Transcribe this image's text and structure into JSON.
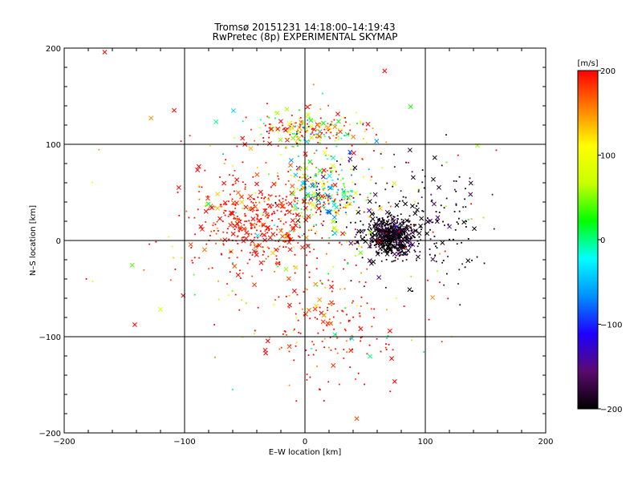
{
  "title": "Tromsø 20151231 14:18:00–14:19:43",
  "subtitle": "RwPretec (8p) EXPERIMENTAL SKYMAP",
  "chart_data": {
    "type": "scatter",
    "title": "Tromsø 20151231 14:18:00–14:19:43",
    "subtitle": "RwPretec (8p) EXPERIMENTAL SKYMAP",
    "xlabel": "E–W location [km]",
    "ylabel": "N–S location [km]",
    "xlim": [
      -200,
      200
    ],
    "ylim": [
      -200,
      200
    ],
    "xticks": [
      -200,
      -100,
      0,
      100,
      200
    ],
    "yticks": [
      -200,
      -100,
      0,
      100,
      200
    ],
    "xtick_labels": [
      "−200",
      "−100",
      "0",
      "100",
      "200"
    ],
    "ytick_labels": [
      "−200",
      "−100",
      "0",
      "100",
      "200"
    ],
    "grid": true,
    "markers": [
      "dot",
      "x"
    ],
    "color_by": "velocity",
    "colorbar": {
      "label": "[m/s]",
      "min": -200,
      "max": 200,
      "ticks": [
        200,
        100,
        0,
        -100,
        -200
      ],
      "tick_labels": [
        "200",
        "100",
        "0",
        "−100",
        "−200"
      ],
      "colormap": [
        "#000000",
        "#5a0a6e",
        "#1e00ff",
        "#0090ff",
        "#00ffff",
        "#00ff00",
        "#c8ff00",
        "#ffff00",
        "#ff8000",
        "#ff0000"
      ]
    },
    "clusters": [
      {
        "region": "east-center",
        "x": 72,
        "y": 5,
        "spread_x": 18,
        "spread_y": 18,
        "velocity": -200,
        "approx_points": 550
      },
      {
        "region": "east-spread",
        "x": 95,
        "y": 20,
        "spread_x": 45,
        "spread_y": 55,
        "velocity": -190,
        "approx_points": 180
      },
      {
        "region": "west-center",
        "x": -40,
        "y": 20,
        "spread_x": 45,
        "spread_y": 40,
        "velocity": 200,
        "approx_points": 380
      },
      {
        "region": "central",
        "x": 15,
        "y": 50,
        "spread_x": 25,
        "spread_y": 35,
        "velocity": 40,
        "approx_points": 280
      },
      {
        "region": "north-arc",
        "x": 0,
        "y": 115,
        "spread_x": 40,
        "spread_y": 15,
        "velocity": 120,
        "approx_points": 220
      },
      {
        "region": "south",
        "x": 20,
        "y": -90,
        "spread_x": 40,
        "spread_y": 50,
        "velocity": 190,
        "approx_points": 140
      },
      {
        "region": "background",
        "x": 0,
        "y": 0,
        "spread_x": 120,
        "spread_y": 120,
        "velocity": 150,
        "approx_points": 260
      }
    ]
  }
}
